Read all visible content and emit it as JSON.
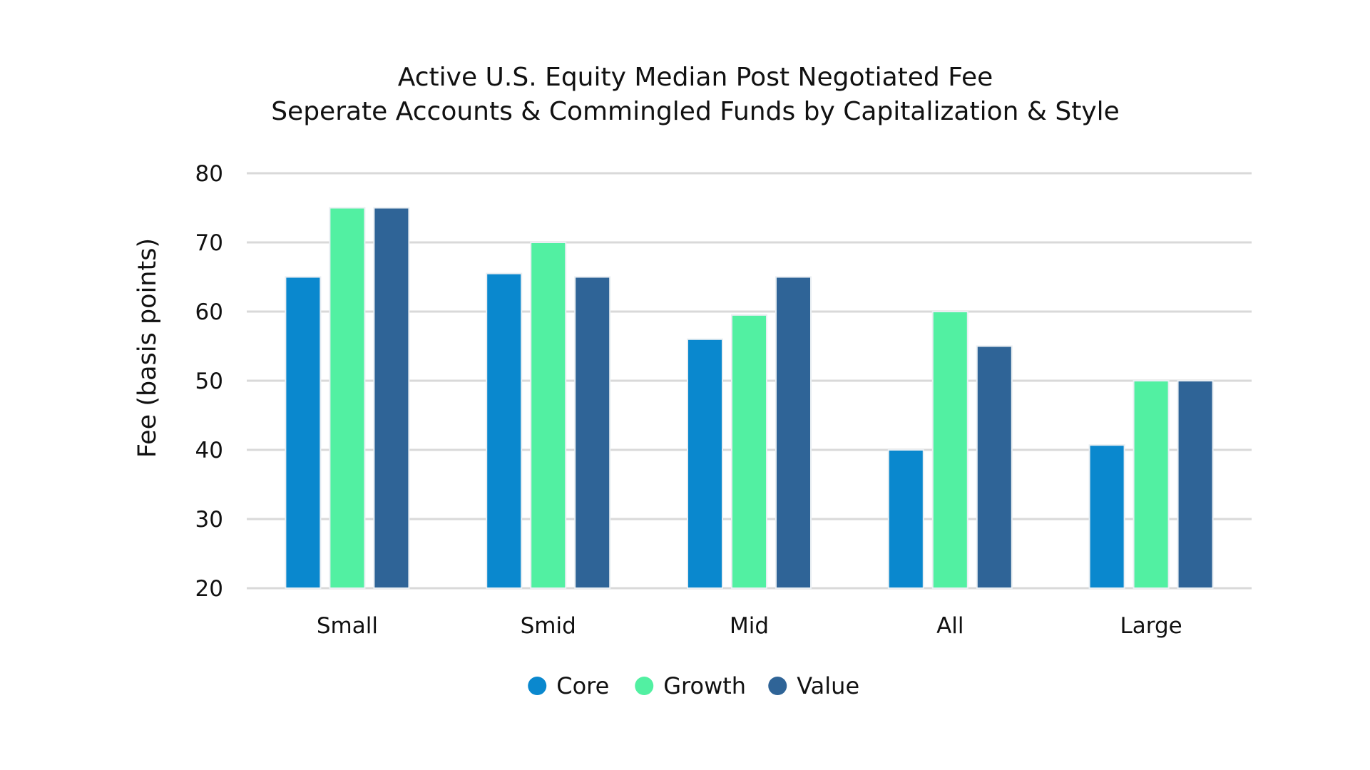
{
  "chart_data": {
    "type": "bar",
    "title": "Active U.S. Equity Median Post Negotiated Fee",
    "subtitle": "Seperate Accounts & Commingled Funds by Capitalization & Style",
    "xlabel": "",
    "ylabel": "Fee (basis points)",
    "ylim": [
      20,
      80
    ],
    "yticks": [
      "80",
      "70",
      "60",
      "50",
      "40",
      "30",
      "20"
    ],
    "ytick_values": [
      80,
      70,
      60,
      50,
      40,
      30,
      20
    ],
    "categories": [
      "Small",
      "Smid",
      "Mid",
      "All",
      "Large"
    ],
    "series": [
      {
        "name": "Core",
        "color": "#0a88ce",
        "values": [
          65,
          65.5,
          56,
          40,
          40.7
        ]
      },
      {
        "name": "Growth",
        "color": "#52f0a2",
        "values": [
          75,
          70,
          59.5,
          60,
          50
        ]
      },
      {
        "name": "Value",
        "color": "#2f6497",
        "values": [
          75,
          65,
          65,
          55,
          50
        ]
      }
    ],
    "grid": true,
    "legend_position": "bottom-center"
  }
}
